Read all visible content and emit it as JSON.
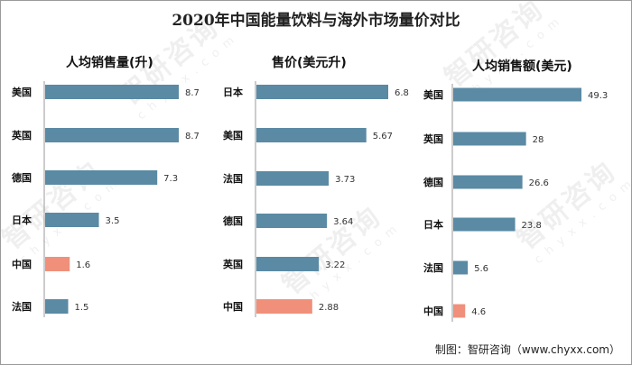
{
  "title": "2020年中国能量饮料与海外市场量价对比",
  "source": "制图：智研咨询（www.chyxx.com）",
  "watermark": {
    "name": "智研咨询",
    "domain": "c h y x x . c o m"
  },
  "colors": {
    "bar": "#5a8aa4",
    "highlight": "#f0907a",
    "axis": "#999999"
  },
  "highlight_category": "中国",
  "chart_data": [
    {
      "type": "bar",
      "orientation": "horizontal",
      "title": "人均销售量(升)",
      "categories": [
        "美国",
        "英国",
        "德国",
        "日本",
        "中国",
        "法国"
      ],
      "values": [
        8.7,
        8.7,
        7.3,
        3.5,
        1.6,
        1.5
      ],
      "value_labels": [
        "8.7",
        "8.7",
        "7.3",
        "3.5",
        "1.6",
        "1.5"
      ],
      "xlim": [
        0,
        8.7
      ],
      "grid": false,
      "legend": "none"
    },
    {
      "type": "bar",
      "orientation": "horizontal",
      "title": "售价(美元升)",
      "categories": [
        "日本",
        "美国",
        "法国",
        "德国",
        "英国",
        "中国"
      ],
      "values": [
        6.8,
        5.67,
        3.73,
        3.64,
        3.22,
        2.88
      ],
      "value_labels": [
        "6.8",
        "5.67",
        "3.73",
        "3.64",
        "3.22",
        "2.88"
      ],
      "xlim": [
        0,
        6.8
      ],
      "grid": false,
      "legend": "none"
    },
    {
      "type": "bar",
      "orientation": "horizontal",
      "title": "人均销售额(美元)",
      "categories": [
        "美国",
        "英国",
        "德国",
        "日本",
        "法国",
        "中国"
      ],
      "values": [
        49.3,
        28,
        26.6,
        23.8,
        5.6,
        4.6
      ],
      "value_labels": [
        "49.3",
        "28",
        "26.6",
        "23.8",
        "5.6",
        "4.6"
      ],
      "xlim": [
        0,
        49.3
      ],
      "grid": false,
      "legend": "none"
    }
  ]
}
